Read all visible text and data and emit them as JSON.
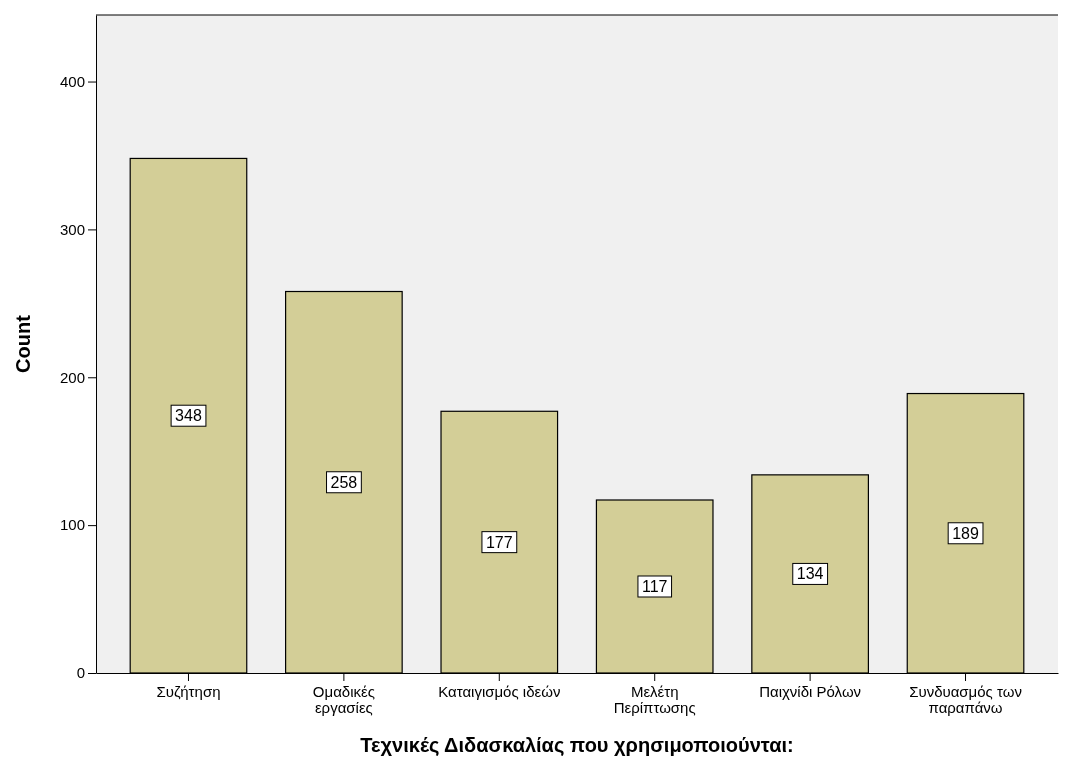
{
  "chart_data": {
    "type": "bar",
    "xlabel": "Τεχνικές Διδασκαλίας που χρησιμοποιούνται:",
    "ylabel": "Count",
    "categories": [
      "Συζήτηση",
      "Ομαδικές εργασίες",
      "Καταιγισμός ιδεών",
      "Μελέτη Περίπτωσης",
      "Παιχνίδι Ρόλων",
      "Συνδυασμός των παραπάνω"
    ],
    "values": [
      348,
      258,
      177,
      117,
      134,
      189
    ],
    "color": "#d3ce97",
    "ylim": [
      0,
      445
    ],
    "yticks": [
      0,
      100,
      200,
      300,
      400
    ],
    "grid": false,
    "data_labels": true
  }
}
